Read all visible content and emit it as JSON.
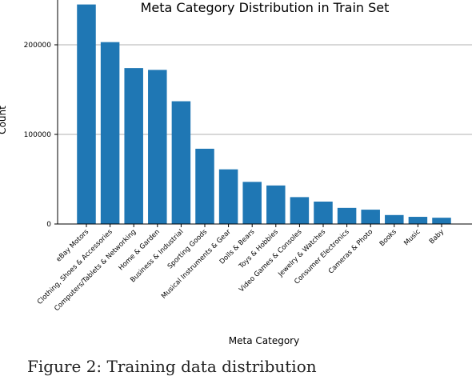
{
  "chart_data": {
    "type": "bar",
    "title": "Meta Category Distribution in Train Set",
    "xlabel": "Meta Category",
    "ylabel": "Count",
    "ylim": [
      0,
      250000
    ],
    "yticks": [
      0,
      100000,
      200000
    ],
    "ytick_labels": [
      "0",
      "100000",
      "200000"
    ],
    "grid": "horizontal",
    "bar_color": "#1f77b4",
    "categories": [
      "eBay Motors",
      "Clothing, Shoes & Accessories",
      "Computers/Tablets & Networking",
      "Home & Garden",
      "Business & Industrial",
      "Sporting Goods",
      "Musical Instruments & Gear",
      "Dolls & Bears",
      "Toys & Hobbies",
      "Video Games & Consoles",
      "Jewelry & Watches",
      "Consumer Electronics",
      "Cameras & Photo",
      "Books",
      "Music",
      "Baby"
    ],
    "values": [
      245000,
      203000,
      174000,
      172000,
      137000,
      84000,
      61000,
      47000,
      43000,
      30000,
      25000,
      18000,
      16000,
      10000,
      8000,
      7000
    ]
  },
  "caption": "Figure 2: Training data distribution"
}
